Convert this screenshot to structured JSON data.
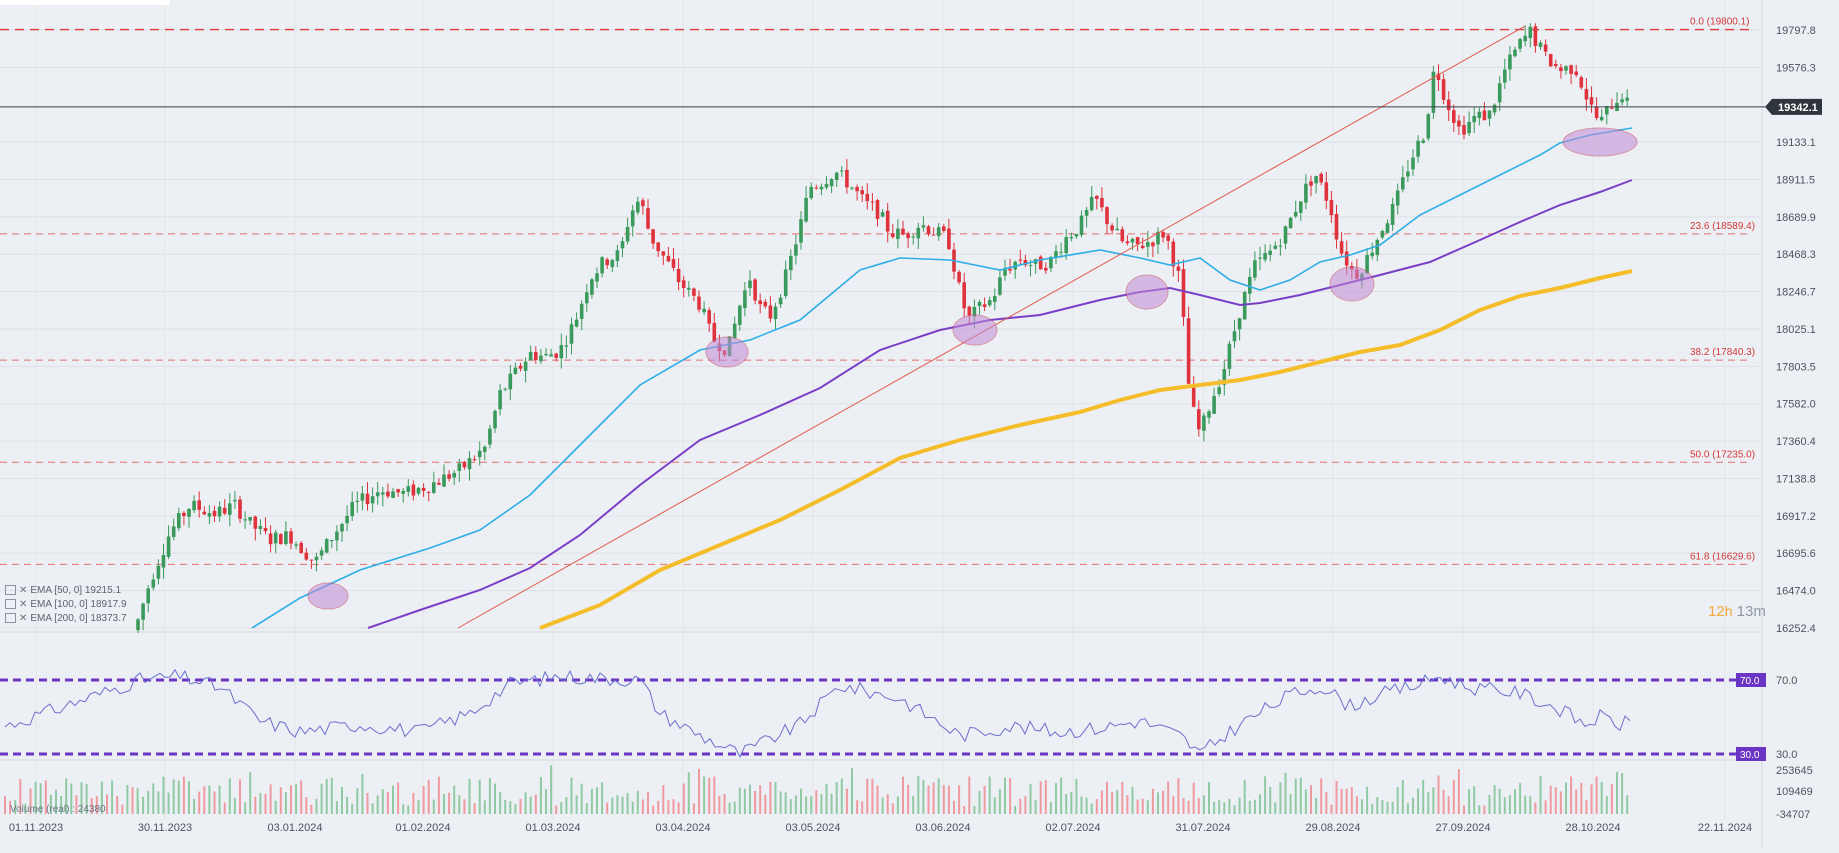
{
  "chart_data": {
    "type": "candlestick",
    "x_axis_dates": [
      "01.11.2023",
      "30.11.2023",
      "03.01.2024",
      "01.02.2024",
      "01.03.2024",
      "03.04.2024",
      "03.05.2024",
      "03.06.2024",
      "02.07.2024",
      "31.07.2024",
      "29.08.2024",
      "27.09.2024",
      "28.10.2024",
      "22.11.2024"
    ],
    "price_ticks": [
      "19797.8",
      "19576.3",
      "19133.1",
      "18911.5",
      "18689.9",
      "18468.3",
      "18246.7",
      "18025.1",
      "17803.5",
      "17582.0",
      "17360.4",
      "17138.8",
      "16917.2",
      "16695.6",
      "16474.0",
      "16252.4"
    ],
    "current_price": "19342.1",
    "fibonacci": [
      {
        "label": "0.0 (19800.1)",
        "value": 19800.1
      },
      {
        "label": "23.6 (18589.4)",
        "value": 18589.4
      },
      {
        "label": "38.2 (17840.3)",
        "value": 17840.3
      },
      {
        "label": "50.0 (17235.0)",
        "value": 17235.0
      },
      {
        "label": "61.8 (16629.6)",
        "value": 16629.6
      }
    ],
    "ema_legend": [
      "EMA [50, 0] 19215.1",
      "EMA [100, 0] 18917.9",
      "EMA [200, 0] 18373.7"
    ],
    "rsi_levels": [
      {
        "label": "70.0",
        "value": 70
      },
      {
        "label": "30.0",
        "value": 30
      }
    ],
    "rsi_axis_ticks": [
      "70.0",
      "30.0"
    ],
    "volume_ticks": [
      "253645",
      "109469",
      "-34707"
    ],
    "volume_label": "Volume (real) : 24380",
    "timer": {
      "hours": "12",
      "h": "h",
      "minutes": "13",
      "m": "m"
    },
    "colors": {
      "up": "#3a9a5b",
      "down": "#e0323c",
      "ema50": "#2eaee6",
      "ema100": "#7a3fc7",
      "ema200": "#f5bd2a",
      "fib": "#e03a3a",
      "rsi": "#6b6fcf",
      "rsi_level": "#6a35c4",
      "trend": "#e05a4a"
    }
  }
}
